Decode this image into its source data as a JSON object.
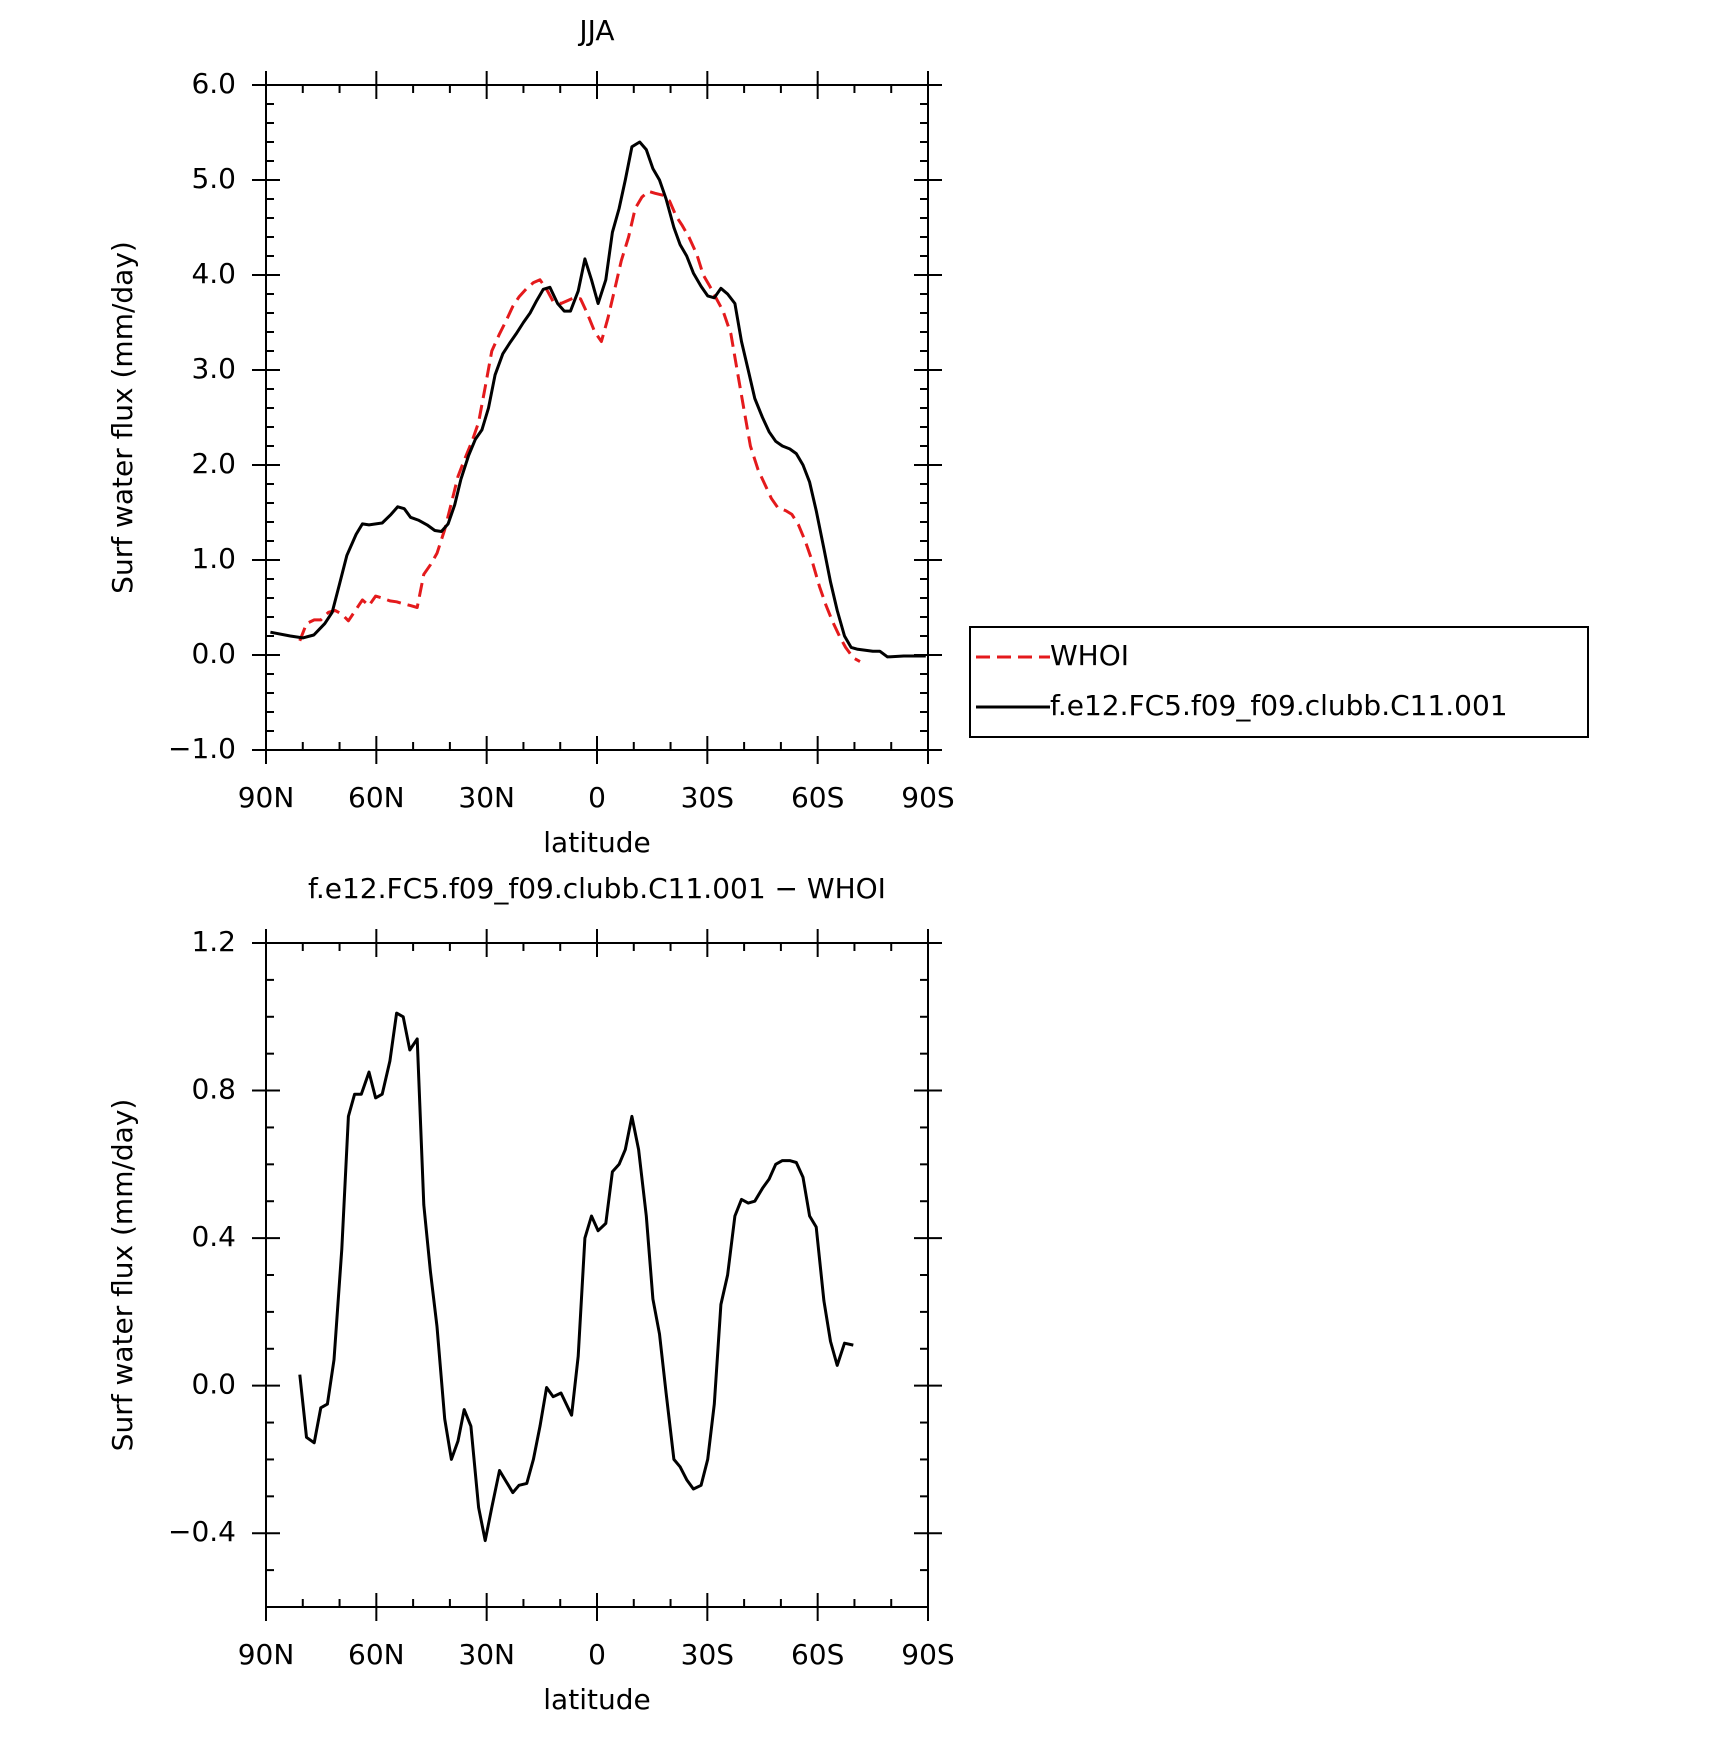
{
  "chart_data": [
    {
      "type": "line",
      "title": "JJA",
      "xlabel": "latitude",
      "ylabel": "Surf water flux (mm/day)",
      "xlim": [
        90,
        -90
      ],
      "xticks": [
        {
          "value": 90,
          "label": "90N"
        },
        {
          "value": 60,
          "label": "60N"
        },
        {
          "value": 30,
          "label": "30N"
        },
        0,
        {
          "value": -30,
          "label": "30S"
        },
        {
          "value": -60,
          "label": "60S"
        },
        {
          "value": -90,
          "label": "90S"
        }
      ],
      "xminorticks": [
        80,
        70,
        50,
        40,
        20,
        10,
        -10,
        -20,
        -40,
        -50,
        -70,
        -80
      ],
      "ylim": [
        -1,
        6
      ],
      "yticks": [
        {
          "value": -1,
          "label": "−1.0"
        },
        {
          "value": 0,
          "label": "0.0"
        },
        {
          "value": 1,
          "label": "1.0"
        },
        {
          "value": 2,
          "label": "2.0"
        },
        {
          "value": 3,
          "label": "3.0"
        },
        {
          "value": 4,
          "label": "4.0"
        },
        {
          "value": 5,
          "label": "5.0"
        },
        {
          "value": 6,
          "label": "6.0"
        }
      ],
      "yminorticks": [
        -0.8,
        -0.6,
        -0.4,
        -0.2,
        0.2,
        0.4,
        0.6,
        0.8,
        1.2,
        1.4,
        1.6,
        1.8,
        2.2,
        2.4,
        2.6,
        2.8,
        3.2,
        3.4,
        3.6,
        3.8,
        4.2,
        4.4,
        4.6,
        4.8,
        5.2,
        5.4,
        5.6,
        5.8
      ],
      "legend": "right",
      "series": [
        {
          "name": "WHOI",
          "color": "#e41a1c",
          "dash": true,
          "x": [
            80.8,
            79,
            76.9,
            75.1,
            73,
            71.2,
            69.4,
            67.6,
            65.5,
            63.8,
            62,
            60.2,
            58.4,
            56.3,
            54.5,
            52.7,
            50.7,
            48.9,
            47.1,
            45.3,
            43.5,
            41.4,
            39.6,
            37.8,
            36.1,
            34,
            32.2,
            30.4,
            28.6,
            26.5,
            24.7,
            22.9,
            21.2,
            19.1,
            17.3,
            15.5,
            13.7,
            11.9,
            9.8,
            8,
            6.3,
            4.5,
            2.7,
            0.6,
            -1.2,
            -3,
            -4.8,
            -6.6,
            -8.6,
            -10.4,
            -12.2,
            -14,
            -15.8,
            -17.9,
            -19.7,
            -21.5,
            -23.2,
            -25,
            -27.1,
            -28.9,
            -30.7,
            -32.5,
            -34.3,
            -36.4,
            -38.1,
            -39.9,
            -41.7,
            -43.8,
            -45.6,
            -47.4,
            -49.2,
            -51.3,
            -53,
            -54.8,
            -56.6,
            -58.4,
            -60.5,
            -62.3,
            -64.1,
            -65.9,
            -67.6,
            -69.7,
            -71.5
          ],
          "values": [
            0.15,
            0.33,
            0.37,
            0.37,
            0.45,
            0.47,
            0.43,
            0.36,
            0.48,
            0.58,
            0.52,
            0.62,
            0.6,
            0.57,
            0.56,
            0.54,
            0.52,
            0.5,
            0.85,
            0.95,
            1.07,
            1.32,
            1.6,
            1.88,
            2.05,
            2.25,
            2.45,
            2.82,
            3.2,
            3.38,
            3.52,
            3.67,
            3.77,
            3.86,
            3.92,
            3.95,
            3.85,
            3.72,
            3.7,
            3.73,
            3.76,
            3.75,
            3.6,
            3.4,
            3.3,
            3.55,
            3.85,
            4.15,
            4.4,
            4.7,
            4.82,
            4.88,
            4.86,
            4.84,
            4.78,
            4.62,
            4.52,
            4.4,
            4.22,
            4.0,
            3.88,
            3.75,
            3.62,
            3.38,
            3.0,
            2.6,
            2.2,
            1.95,
            1.8,
            1.65,
            1.55,
            1.52,
            1.48,
            1.37,
            1.2,
            1.0,
            0.72,
            0.52,
            0.35,
            0.2,
            0.08,
            -0.03,
            -0.07
          ]
        },
        {
          "name": "f.e12.FC5.f09_f09.clubb.C11.001",
          "color": "#000000",
          "dash": false,
          "x": [
            88.8,
            83.4,
            80,
            77,
            74,
            72,
            70,
            68,
            65.5,
            63.8,
            62,
            58.4,
            56,
            54.2,
            52.4,
            50.7,
            48.6,
            46.2,
            44.1,
            42.3,
            40.5,
            38.7,
            37,
            34.9,
            33.1,
            31.3,
            29.5,
            27.7,
            25.6,
            23.8,
            22,
            20,
            18.2,
            16.4,
            14.6,
            12.8,
            10.7,
            8.9,
            7.2,
            5.1,
            3.3,
            1.5,
            -0.3,
            -2.4,
            -4.2,
            -6,
            -7.7,
            -9.5,
            -11.6,
            -13.4,
            -15.2,
            -17,
            -18.8,
            -20.9,
            -22.6,
            -24.4,
            -26.2,
            -28.3,
            -30.1,
            -31.9,
            -33.7,
            -35.5,
            -37.5,
            -39.3,
            -41.1,
            -42.9,
            -45,
            -46.8,
            -48.6,
            -50.4,
            -52.4,
            -54.2,
            -56,
            -57.8,
            -59.6,
            -61.7,
            -63.5,
            -65.3,
            -67.3,
            -69.1,
            -70.9,
            -75,
            -76.9,
            -79,
            -83.4,
            -89.4
          ],
          "values": [
            0.24,
            0.2,
            0.18,
            0.21,
            0.33,
            0.45,
            0.75,
            1.05,
            1.27,
            1.38,
            1.37,
            1.39,
            1.48,
            1.56,
            1.54,
            1.45,
            1.42,
            1.37,
            1.31,
            1.3,
            1.38,
            1.58,
            1.85,
            2.1,
            2.27,
            2.37,
            2.6,
            2.95,
            3.17,
            3.28,
            3.38,
            3.5,
            3.6,
            3.73,
            3.85,
            3.87,
            3.7,
            3.62,
            3.62,
            3.83,
            4.17,
            3.95,
            3.7,
            3.95,
            4.45,
            4.7,
            5.0,
            5.35,
            5.4,
            5.32,
            5.12,
            5.0,
            4.8,
            4.5,
            4.32,
            4.2,
            4.02,
            3.88,
            3.78,
            3.76,
            3.86,
            3.8,
            3.7,
            3.3,
            3.0,
            2.7,
            2.5,
            2.35,
            2.25,
            2.2,
            2.17,
            2.12,
            2.0,
            1.82,
            1.52,
            1.12,
            0.77,
            0.47,
            0.2,
            0.08,
            0.06,
            0.04,
            0.04,
            -0.02,
            -0.01,
            -0.01
          ]
        }
      ]
    },
    {
      "type": "line",
      "title": "f.e12.FC5.f09_f09.clubb.C11.001 − WHOI",
      "xlabel": "latitude",
      "ylabel": "Surf water flux (mm/day)",
      "xlim": [
        90,
        -90
      ],
      "xticks": [
        {
          "value": 90,
          "label": "90N"
        },
        {
          "value": 60,
          "label": "60N"
        },
        {
          "value": 30,
          "label": "30N"
        },
        0,
        {
          "value": -30,
          "label": "30S"
        },
        {
          "value": -60,
          "label": "60S"
        },
        {
          "value": -90,
          "label": "90S"
        }
      ],
      "xminorticks": [
        80,
        70,
        50,
        40,
        20,
        10,
        -10,
        -20,
        -40,
        -50,
        -70,
        -80
      ],
      "ylim": [
        -0.6,
        1.2
      ],
      "yticks": [
        {
          "value": -0.4,
          "label": "−0.4"
        },
        {
          "value": 0,
          "label": "0.0"
        },
        0.4,
        0.8,
        1.2
      ],
      "yminorticks": [
        -0.5,
        -0.3,
        -0.2,
        -0.1,
        0.1,
        0.2,
        0.3,
        0.5,
        0.6,
        0.7,
        0.9,
        1.0,
        1.1
      ],
      "series": [
        {
          "color": "#000000",
          "dash": false,
          "x": [
            80.8,
            79,
            76.9,
            75.1,
            73.3,
            71.5,
            69.4,
            67.6,
            65.9,
            64.1,
            62,
            60.2,
            58.4,
            56.3,
            54.5,
            52.7,
            50.9,
            48.9,
            47.1,
            45.3,
            43.5,
            41.4,
            39.6,
            37.8,
            36.1,
            34.3,
            32.2,
            30.4,
            28.6,
            26.5,
            24.7,
            22.9,
            21.2,
            19.1,
            17.3,
            15.5,
            13.7,
            11.9,
            9.8,
            6.9,
            5.1,
            3.3,
            1.5,
            -0.3,
            -2.4,
            -4.2,
            -6,
            -7.7,
            -9.5,
            -11.3,
            -13.4,
            -15.2,
            -17,
            -18.8,
            -20.9,
            -22.6,
            -24.4,
            -26.2,
            -28.3,
            -30.1,
            -31.9,
            -33.7,
            -35.5,
            -37.5,
            -39.3,
            -41.1,
            -42.9,
            -45,
            -46.8,
            -48.6,
            -50.4,
            -52.4,
            -54.2,
            -56,
            -57.8,
            -59.6,
            -61.7,
            -63.5,
            -65.3,
            -67.3,
            -69.7
          ],
          "values": [
            0.03,
            -0.14,
            -0.155,
            -0.06,
            -0.05,
            0.07,
            0.37,
            0.73,
            0.79,
            0.79,
            0.85,
            0.78,
            0.79,
            0.88,
            1.01,
            1.0,
            0.91,
            0.94,
            0.49,
            0.31,
            0.16,
            -0.09,
            -0.2,
            -0.15,
            -0.065,
            -0.11,
            -0.33,
            -0.42,
            -0.33,
            -0.23,
            -0.26,
            -0.29,
            -0.27,
            -0.265,
            -0.2,
            -0.11,
            -0.005,
            -0.03,
            -0.02,
            -0.08,
            0.08,
            0.4,
            0.46,
            0.42,
            0.44,
            0.58,
            0.6,
            0.64,
            0.73,
            0.64,
            0.46,
            0.235,
            0.14,
            -0.02,
            -0.2,
            -0.22,
            -0.255,
            -0.28,
            -0.27,
            -0.2,
            -0.05,
            0.22,
            0.3,
            0.46,
            0.505,
            0.495,
            0.5,
            0.535,
            0.56,
            0.6,
            0.61,
            0.61,
            0.605,
            0.565,
            0.46,
            0.43,
            0.23,
            0.12,
            0.055,
            0.115,
            0.11
          ]
        }
      ]
    }
  ]
}
